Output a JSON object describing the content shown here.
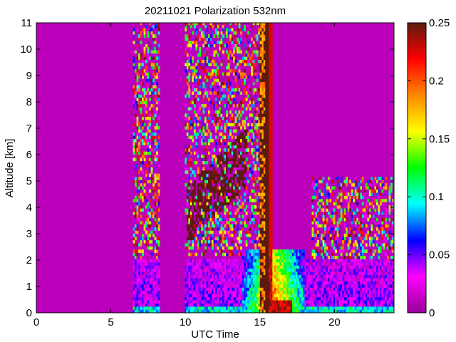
{
  "chart_data": {
    "type": "heatmap",
    "title": "20211021 Polarization 532nm",
    "xlabel": "UTC Time",
    "ylabel": "Altitude [km]",
    "xlim": [
      0,
      24
    ],
    "ylim": [
      0,
      11
    ],
    "xticks": [
      "0",
      "5",
      "10",
      "15",
      "20"
    ],
    "yticks": [
      "0",
      "1",
      "2",
      "3",
      "4",
      "5",
      "6",
      "7",
      "8",
      "9",
      "10",
      "11"
    ],
    "colorbar": {
      "range": [
        0,
        0.25
      ],
      "ticks": [
        "0",
        "0.05",
        "0.1",
        "0.15",
        "0.2",
        "0.25"
      ],
      "colormap": [
        "#990099",
        "#ff00ff",
        "#0000ff",
        "#00ffff",
        "#00ff00",
        "#ffff00",
        "#ff8800",
        "#ff0000",
        "#5c1a0f"
      ]
    },
    "background_value": 0.01,
    "features": [
      {
        "name": "noise-band",
        "t": [
          6.5,
          8.3
        ],
        "z": [
          1.9,
          11
        ]
      },
      {
        "name": "noise-band",
        "t": [
          9.9,
          15.2
        ],
        "z": [
          2.2,
          11
        ]
      },
      {
        "name": "noise-band",
        "t": [
          18.5,
          24
        ],
        "z": [
          2.0,
          5.2
        ]
      },
      {
        "name": "data-gap",
        "t": [
          8.3,
          9.9
        ],
        "z": [
          0,
          11
        ]
      },
      {
        "name": "high-depol-layer",
        "t": [
          10.1,
          14.2
        ],
        "z": [
          2.6,
          7.0
        ]
      },
      {
        "name": "high-depol-column",
        "t": [
          15.0,
          15.8
        ],
        "z": [
          0,
          11
        ]
      },
      {
        "name": "boundary-layer",
        "t": [
          6.5,
          24
        ],
        "z": [
          0,
          2.0
        ]
      },
      {
        "name": "dust-plume",
        "t": [
          13.8,
          18.0
        ],
        "z": [
          0,
          2.4
        ]
      }
    ]
  }
}
